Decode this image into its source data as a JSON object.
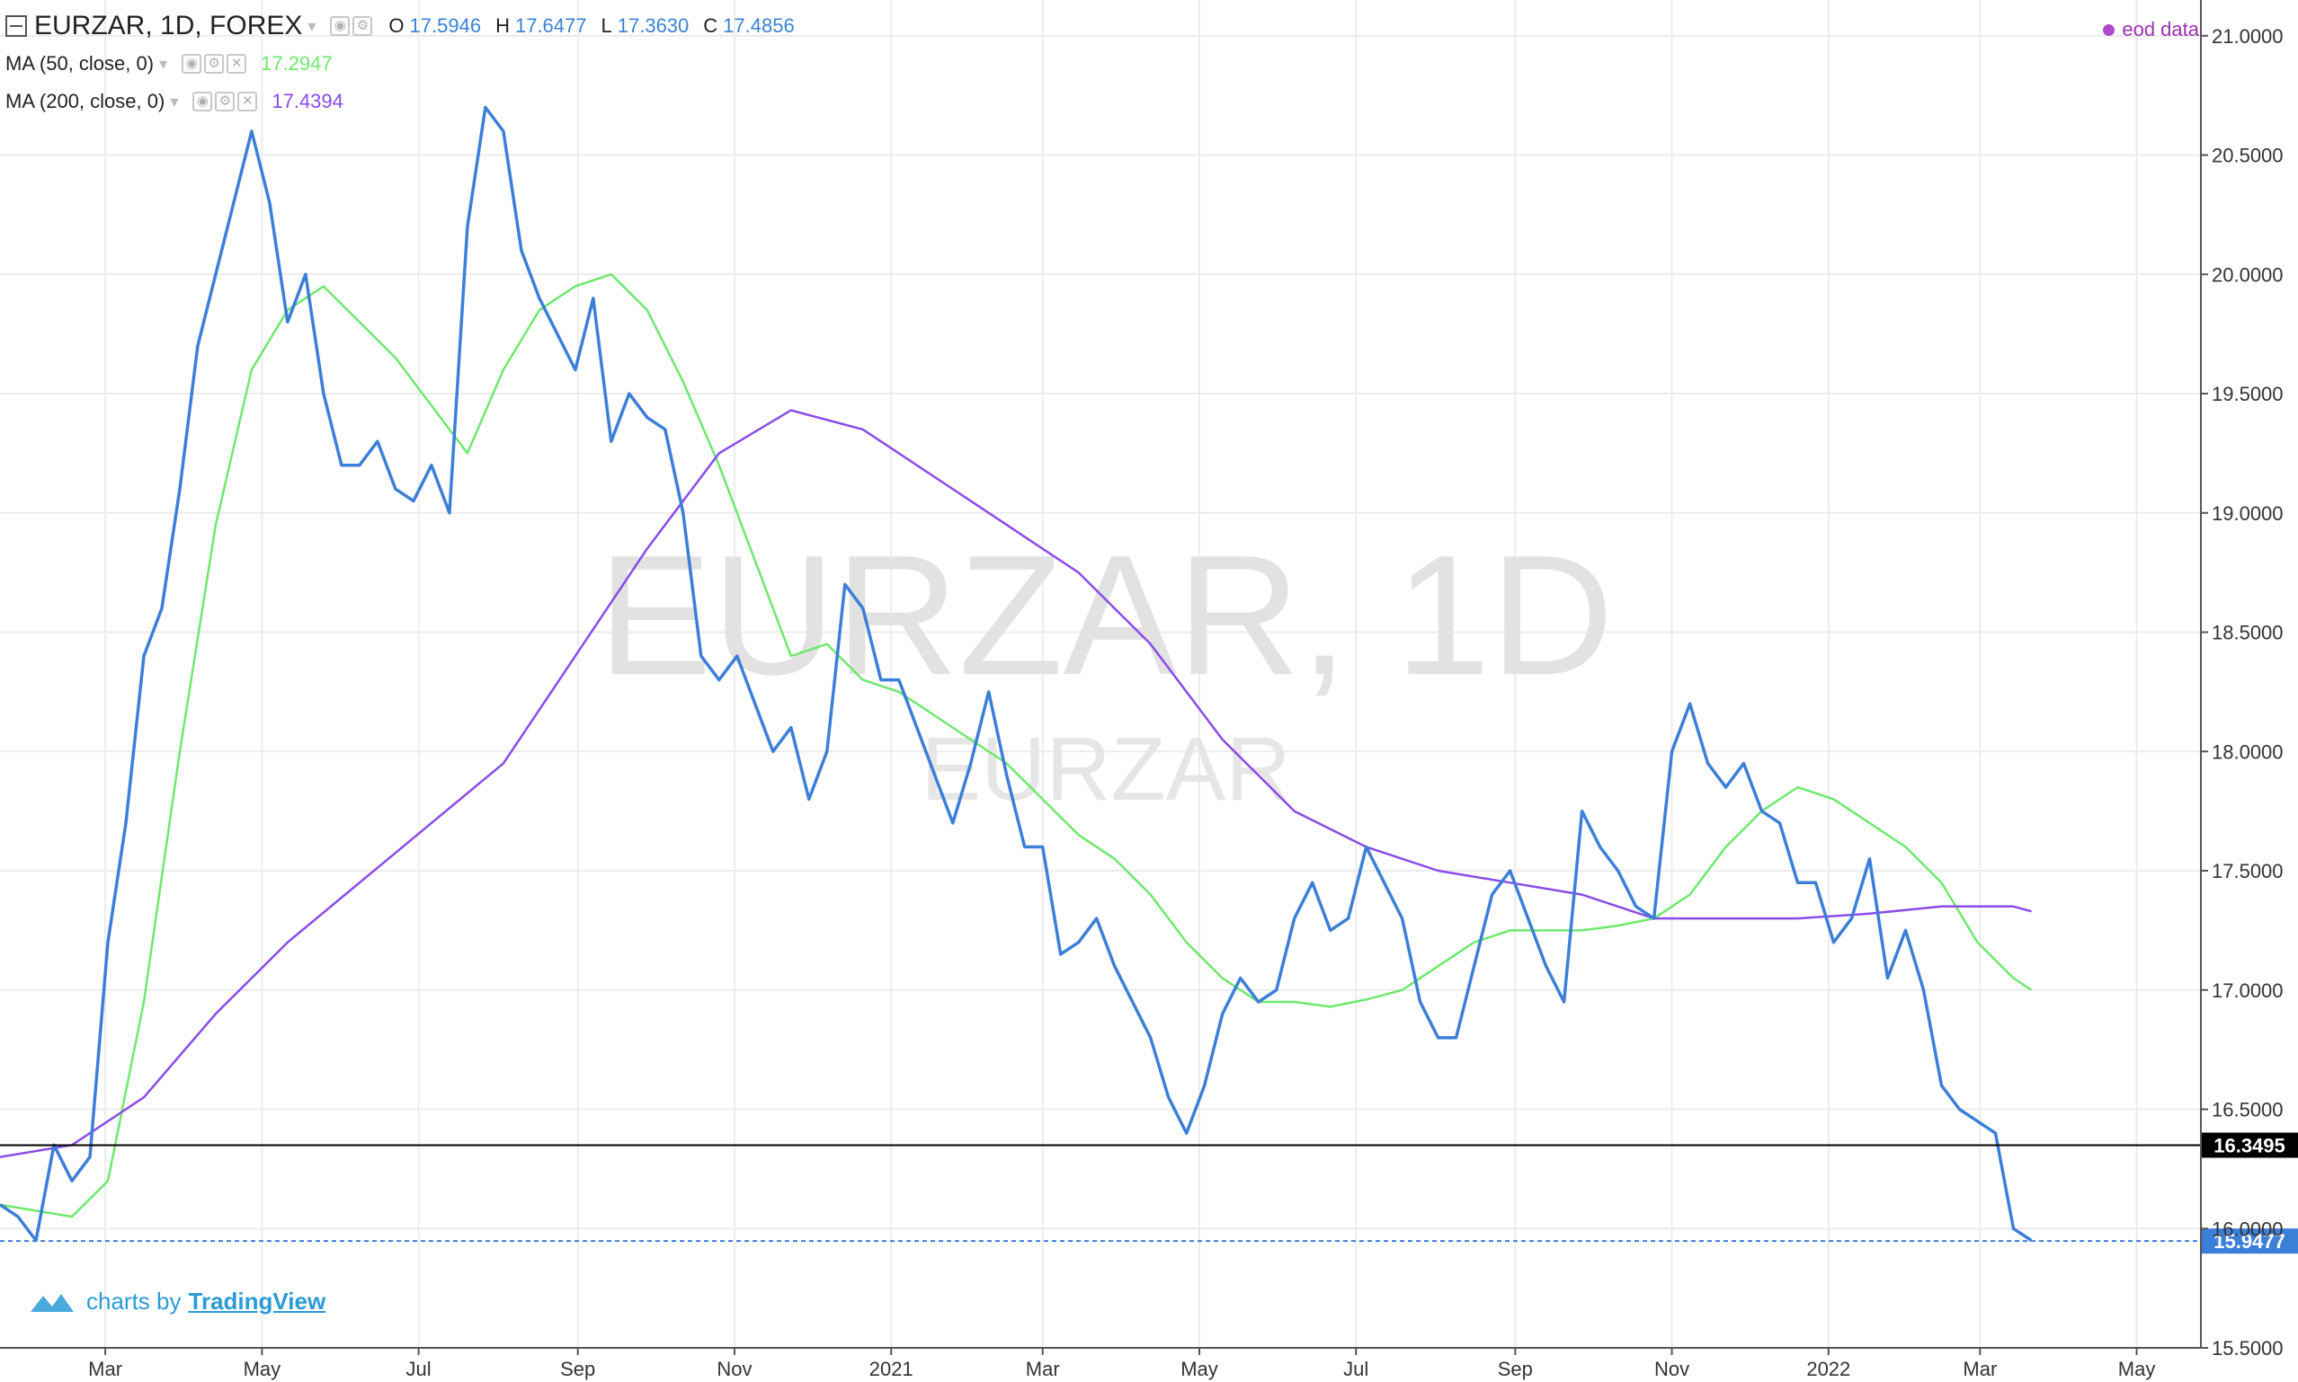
{
  "header": {
    "symbol": "EURZAR, 1D, FOREX",
    "ohlc": {
      "o_label": "O",
      "o": "17.5946",
      "h_label": "H",
      "h": "17.6477",
      "l_label": "L",
      "l": "17.3630",
      "c_label": "C",
      "c": "17.4856"
    },
    "source_label": "eod data"
  },
  "indicators": [
    {
      "name": "MA (50, close, 0)",
      "value": "17.2947",
      "color": "#6ee86e"
    },
    {
      "name": "MA (200, close, 0)",
      "value": "17.4394",
      "color": "#8a4bea"
    }
  ],
  "watermark": {
    "main": "EURZAR, 1D",
    "sub": "EURZAR"
  },
  "branding": {
    "prefix": "charts by",
    "name": "TradingView"
  },
  "colors": {
    "price": "#3c7fd8",
    "hline": "#000000",
    "last_price": "#3c7fd8",
    "grid": "#ececec"
  },
  "chart_data": {
    "type": "line",
    "y_axis": {
      "range": [
        15.5,
        21.15
      ],
      "ticks": [
        "15.5000",
        "16.0000",
        "16.5000",
        "17.0000",
        "17.5000",
        "18.0000",
        "18.5000",
        "19.0000",
        "19.5000",
        "20.0000",
        "20.5000",
        "21.0000"
      ],
      "side": "right"
    },
    "x_axis": {
      "range": [
        "2020-01-20",
        "2022-05-26"
      ],
      "ticks": [
        {
          "date": "2020-03-01",
          "label": "Mar"
        },
        {
          "date": "2020-05-01",
          "label": "May"
        },
        {
          "date": "2020-07-01",
          "label": "Jul"
        },
        {
          "date": "2020-09-01",
          "label": "Sep"
        },
        {
          "date": "2020-11-01",
          "label": "Nov"
        },
        {
          "date": "2021-01-01",
          "label": "2021"
        },
        {
          "date": "2021-03-01",
          "label": "Mar"
        },
        {
          "date": "2021-05-01",
          "label": "May"
        },
        {
          "date": "2021-07-01",
          "label": "Jul"
        },
        {
          "date": "2021-09-01",
          "label": "Sep"
        },
        {
          "date": "2021-11-01",
          "label": "Nov"
        },
        {
          "date": "2022-01-01",
          "label": "2022"
        },
        {
          "date": "2022-03-01",
          "label": "Mar"
        },
        {
          "date": "2022-05-01",
          "label": "May"
        }
      ]
    },
    "grid": true,
    "price_markers": [
      {
        "value": 16.3495,
        "label": "16.3495",
        "style": "solid"
      },
      {
        "value": 15.9477,
        "label": "15.9477",
        "style": "dashed"
      }
    ],
    "series": [
      {
        "name": "EURZAR",
        "x": [
          "2020-01-20",
          "2020-01-27",
          "2020-02-03",
          "2020-02-10",
          "2020-02-17",
          "2020-02-24",
          "2020-03-02",
          "2020-03-09",
          "2020-03-16",
          "2020-03-23",
          "2020-03-30",
          "2020-04-06",
          "2020-04-13",
          "2020-04-20",
          "2020-04-27",
          "2020-05-04",
          "2020-05-11",
          "2020-05-18",
          "2020-05-25",
          "2020-06-01",
          "2020-06-08",
          "2020-06-15",
          "2020-06-22",
          "2020-06-29",
          "2020-07-06",
          "2020-07-13",
          "2020-07-20",
          "2020-07-27",
          "2020-08-03",
          "2020-08-10",
          "2020-08-17",
          "2020-08-24",
          "2020-08-31",
          "2020-09-07",
          "2020-09-14",
          "2020-09-21",
          "2020-09-28",
          "2020-10-05",
          "2020-10-12",
          "2020-10-19",
          "2020-10-26",
          "2020-11-02",
          "2020-11-09",
          "2020-11-16",
          "2020-11-23",
          "2020-11-30",
          "2020-12-07",
          "2020-12-14",
          "2020-12-21",
          "2020-12-28",
          "2021-01-04",
          "2021-01-11",
          "2021-01-18",
          "2021-01-25",
          "2021-02-01",
          "2021-02-08",
          "2021-02-15",
          "2021-02-22",
          "2021-03-01",
          "2021-03-08",
          "2021-03-15",
          "2021-03-22",
          "2021-03-29",
          "2021-04-05",
          "2021-04-12",
          "2021-04-19",
          "2021-04-26",
          "2021-05-03",
          "2021-05-10",
          "2021-05-17",
          "2021-05-24",
          "2021-05-31",
          "2021-06-07",
          "2021-06-14",
          "2021-06-21",
          "2021-06-28",
          "2021-07-05",
          "2021-07-12",
          "2021-07-19",
          "2021-07-26",
          "2021-08-02",
          "2021-08-09",
          "2021-08-16",
          "2021-08-23",
          "2021-08-30",
          "2021-09-06",
          "2021-09-13",
          "2021-09-20",
          "2021-09-27",
          "2021-10-04",
          "2021-10-11",
          "2021-10-18",
          "2021-10-25",
          "2021-11-01",
          "2021-11-08",
          "2021-11-15",
          "2021-11-22",
          "2021-11-29",
          "2021-12-06",
          "2021-12-13",
          "2021-12-20",
          "2021-12-27",
          "2022-01-03",
          "2022-01-10",
          "2022-01-17",
          "2022-01-24",
          "2022-01-31",
          "2022-02-07",
          "2022-02-14",
          "2022-02-21",
          "2022-02-28",
          "2022-03-07",
          "2022-03-14",
          "2022-03-21"
        ],
        "values": [
          16.1,
          16.05,
          15.95,
          16.35,
          16.2,
          16.3,
          17.2,
          17.7,
          18.4,
          18.6,
          19.1,
          19.7,
          20.0,
          20.3,
          20.6,
          20.3,
          19.8,
          20.0,
          19.5,
          19.2,
          19.2,
          19.3,
          19.1,
          19.05,
          19.2,
          19.0,
          20.2,
          20.7,
          20.6,
          20.1,
          19.9,
          19.75,
          19.6,
          19.9,
          19.3,
          19.5,
          19.4,
          19.35,
          19.0,
          18.4,
          18.3,
          18.4,
          18.2,
          18.0,
          18.1,
          17.8,
          18.0,
          18.7,
          18.6,
          18.3,
          18.3,
          18.1,
          17.9,
          17.7,
          17.95,
          18.25,
          17.9,
          17.6,
          17.6,
          17.15,
          17.2,
          17.3,
          17.1,
          16.95,
          16.8,
          16.55,
          16.4,
          16.6,
          16.9,
          17.05,
          16.95,
          17.0,
          17.3,
          17.45,
          17.25,
          17.3,
          17.6,
          17.45,
          17.3,
          16.95,
          16.8,
          16.8,
          17.1,
          17.4,
          17.5,
          17.3,
          17.1,
          16.95,
          17.75,
          17.6,
          17.5,
          17.35,
          17.3,
          18.0,
          18.2,
          17.95,
          17.85,
          17.95,
          17.75,
          17.7,
          17.45,
          17.45,
          17.2,
          17.3,
          17.55,
          17.05,
          17.25,
          17.0,
          16.6,
          16.5,
          16.45,
          16.4,
          16.0,
          15.95
        ]
      },
      {
        "name": "MA (50, close, 0)",
        "x": [
          "2020-01-20",
          "2020-02-17",
          "2020-03-02",
          "2020-03-16",
          "2020-03-30",
          "2020-04-13",
          "2020-04-27",
          "2020-05-11",
          "2020-05-25",
          "2020-06-08",
          "2020-06-22",
          "2020-07-06",
          "2020-07-20",
          "2020-08-03",
          "2020-08-17",
          "2020-08-31",
          "2020-09-14",
          "2020-09-28",
          "2020-10-12",
          "2020-10-26",
          "2020-11-09",
          "2020-11-23",
          "2020-12-07",
          "2020-12-21",
          "2021-01-04",
          "2021-01-18",
          "2021-02-01",
          "2021-02-15",
          "2021-03-01",
          "2021-03-15",
          "2021-03-29",
          "2021-04-12",
          "2021-04-26",
          "2021-05-10",
          "2021-05-24",
          "2021-06-07",
          "2021-06-21",
          "2021-07-05",
          "2021-07-19",
          "2021-08-02",
          "2021-08-16",
          "2021-08-30",
          "2021-09-13",
          "2021-09-27",
          "2021-10-11",
          "2021-10-25",
          "2021-11-08",
          "2021-11-22",
          "2021-12-06",
          "2021-12-20",
          "2022-01-03",
          "2022-01-17",
          "2022-01-31",
          "2022-02-14",
          "2022-02-28",
          "2022-03-14",
          "2022-03-21"
        ],
        "values": [
          16.1,
          16.05,
          16.2,
          16.95,
          18.0,
          18.95,
          19.6,
          19.85,
          19.95,
          19.8,
          19.65,
          19.45,
          19.25,
          19.6,
          19.85,
          19.95,
          20.0,
          19.85,
          19.55,
          19.2,
          18.8,
          18.4,
          18.45,
          18.3,
          18.25,
          18.15,
          18.05,
          17.95,
          17.8,
          17.65,
          17.55,
          17.4,
          17.2,
          17.05,
          16.95,
          16.95,
          16.93,
          16.96,
          17.0,
          17.1,
          17.2,
          17.25,
          17.25,
          17.25,
          17.27,
          17.3,
          17.4,
          17.6,
          17.75,
          17.85,
          17.8,
          17.7,
          17.6,
          17.45,
          17.2,
          17.05,
          17.0
        ]
      },
      {
        "name": "MA (200, close, 0)",
        "x": [
          "2020-01-20",
          "2020-02-17",
          "2020-03-16",
          "2020-04-13",
          "2020-05-11",
          "2020-06-08",
          "2020-07-06",
          "2020-08-03",
          "2020-08-31",
          "2020-09-28",
          "2020-10-26",
          "2020-11-23",
          "2020-12-21",
          "2021-01-18",
          "2021-02-15",
          "2021-03-15",
          "2021-04-12",
          "2021-05-10",
          "2021-06-07",
          "2021-07-05",
          "2021-08-02",
          "2021-08-30",
          "2021-09-27",
          "2021-10-25",
          "2021-11-22",
          "2021-12-20",
          "2022-01-17",
          "2022-02-14",
          "2022-03-14",
          "2022-03-21"
        ],
        "values": [
          16.3,
          16.35,
          16.55,
          16.9,
          17.2,
          17.45,
          17.7,
          17.95,
          18.4,
          18.85,
          19.25,
          19.43,
          19.35,
          19.15,
          18.95,
          18.75,
          18.45,
          18.05,
          17.75,
          17.6,
          17.5,
          17.45,
          17.4,
          17.3,
          17.3,
          17.3,
          17.32,
          17.35,
          17.35,
          17.33
        ]
      }
    ]
  }
}
